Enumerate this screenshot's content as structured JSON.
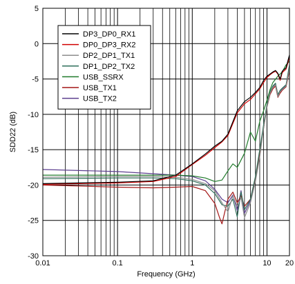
{
  "chart_data": {
    "type": "line",
    "xlabel": "Frequency (GHz)",
    "ylabel": "SDD22 (dB)",
    "xscale": "log",
    "xlim": [
      0.01,
      20
    ],
    "ylim": [
      -30,
      5
    ],
    "x_ticks": [
      {
        "value": 0.01,
        "label": "0.01"
      },
      {
        "value": 0.1,
        "label": "0.1"
      },
      {
        "value": 1,
        "label": "1"
      },
      {
        "value": 10,
        "label": "10"
      },
      {
        "value": 20,
        "label": "20"
      }
    ],
    "y_ticks": [
      {
        "value": 5,
        "label": "5"
      },
      {
        "value": 0,
        "label": "0"
      },
      {
        "value": -5,
        "label": "-5"
      },
      {
        "value": -10,
        "label": "-10"
      },
      {
        "value": -15,
        "label": "-15"
      },
      {
        "value": -20,
        "label": "-20"
      },
      {
        "value": -25,
        "label": "-25"
      },
      {
        "value": -30,
        "label": "-30"
      }
    ],
    "grid": true,
    "legend_position": "top-left",
    "series": [
      {
        "name": "DP3_DP0_RX1",
        "color": "#000000",
        "x": [
          0.01,
          0.1,
          0.3,
          0.6,
          1.0,
          1.5,
          2.0,
          2.5,
          3.0,
          4.0,
          5.0,
          6.0,
          7.0,
          8.0,
          9.0,
          10.0,
          11.0,
          12.0,
          13.0,
          14.0,
          15.0,
          16.0,
          18.0,
          20.0
        ],
        "y": [
          -19.8,
          -19.6,
          -19.4,
          -18.6,
          -17.0,
          -15.6,
          -14.5,
          -13.8,
          -12.8,
          -9.5,
          -8.2,
          -7.6,
          -6.9,
          -6.2,
          -5.2,
          -4.6,
          -4.3,
          -4.0,
          -3.8,
          -4.2,
          -5.0,
          -3.9,
          -3.4,
          -1.6
        ]
      },
      {
        "name": "DP0_DP3_RX2",
        "color": "#d00000",
        "x": [
          0.01,
          0.1,
          0.3,
          0.6,
          1.0,
          1.5,
          2.0,
          2.5,
          3.0,
          4.0,
          5.0,
          6.0,
          7.0,
          8.0,
          9.0,
          10.0,
          11.0,
          12.0,
          13.0,
          14.0,
          15.0,
          16.0,
          18.0,
          20.0
        ],
        "y": [
          -19.9,
          -19.7,
          -19.5,
          -18.8,
          -17.1,
          -15.8,
          -14.7,
          -13.9,
          -13.0,
          -9.8,
          -8.5,
          -7.9,
          -7.1,
          -6.4,
          -5.5,
          -4.8,
          -4.4,
          -4.1,
          -3.9,
          -4.3,
          -5.2,
          -4.1,
          -3.6,
          -1.9
        ]
      },
      {
        "name": "DP2_DP1_TX1",
        "color": "#8c8c8c",
        "x": [
          0.01,
          0.1,
          0.3,
          0.6,
          1.0,
          1.5,
          2.0,
          2.5,
          3.0,
          3.5,
          4.0,
          4.5,
          5.0,
          6.0,
          7.0,
          8.0,
          9.0,
          10.0,
          11.0,
          12.0,
          13.0,
          14.0,
          15.0,
          16.0,
          18.0,
          20.0
        ],
        "y": [
          -18.9,
          -18.8,
          -18.8,
          -18.9,
          -19.2,
          -19.8,
          -20.8,
          -22.5,
          -23.8,
          -21.5,
          -23.0,
          -21.8,
          -24.6,
          -22.5,
          -19.5,
          -16.0,
          -12.0,
          -9.0,
          -7.0,
          -6.2,
          -5.8,
          -7.5,
          -6.8,
          -6.5,
          -6.0,
          -3.5
        ]
      },
      {
        "name": "DP1_DP2_TX2",
        "color": "#2e6f5a",
        "x": [
          0.01,
          0.1,
          0.3,
          0.6,
          1.0,
          1.5,
          2.0,
          2.5,
          3.0,
          3.5,
          4.0,
          4.5,
          5.0,
          6.0,
          7.0,
          8.0,
          9.0,
          10.0,
          11.0,
          12.0,
          13.0,
          14.0,
          15.0,
          16.0,
          18.0,
          20.0
        ],
        "y": [
          -19.1,
          -19.0,
          -19.0,
          -19.1,
          -19.4,
          -20.0,
          -21.2,
          -22.8,
          -23.0,
          -22.0,
          -24.5,
          -21.0,
          -23.5,
          -22.0,
          -18.8,
          -15.0,
          -11.5,
          -8.6,
          -6.8,
          -6.0,
          -5.6,
          -7.2,
          -6.6,
          -6.3,
          -5.8,
          -3.0
        ]
      },
      {
        "name": "USB_SSRX",
        "color": "#1f7a2a",
        "x": [
          0.01,
          0.1,
          0.3,
          0.6,
          1.0,
          1.5,
          2.0,
          2.5,
          3.0,
          3.5,
          4.0,
          5.0,
          6.0,
          7.0,
          8.0,
          9.0,
          10.0,
          11.0,
          12.0,
          14.0,
          16.0,
          18.0,
          20.0
        ],
        "y": [
          -18.6,
          -18.6,
          -18.6,
          -18.6,
          -18.7,
          -19.0,
          -19.5,
          -19.3,
          -18.0,
          -17.0,
          -17.5,
          -15.5,
          -12.5,
          -13.8,
          -11.0,
          -9.5,
          -8.0,
          -6.5,
          -5.5,
          -4.6,
          -4.0,
          -3.0,
          -2.5
        ]
      },
      {
        "name": "USB_TX1",
        "color": "#a31515",
        "x": [
          0.01,
          0.1,
          0.3,
          0.6,
          1.0,
          1.5,
          2.0,
          2.3,
          2.5,
          2.7,
          3.0,
          3.5,
          4.0,
          4.5,
          5.0,
          6.0,
          7.0,
          8.0,
          9.0,
          10.0,
          11.0,
          12.0,
          13.0,
          14.0,
          15.0,
          16.0,
          18.0,
          20.0
        ],
        "y": [
          -20.0,
          -20.3,
          -20.4,
          -20.3,
          -20.2,
          -20.8,
          -22.6,
          -24.5,
          -25.5,
          -24.0,
          -22.0,
          -21.0,
          -22.5,
          -21.5,
          -23.0,
          -22.0,
          -19.0,
          -15.5,
          -12.0,
          -9.0,
          -7.2,
          -6.4,
          -6.0,
          -7.6,
          -7.0,
          -6.6,
          -6.1,
          -3.8
        ]
      },
      {
        "name": "USB_TX2",
        "color": "#5b3d8e",
        "x": [
          0.01,
          0.1,
          0.3,
          0.6,
          1.0,
          1.5,
          2.0,
          2.5,
          3.0,
          3.5,
          4.0,
          4.5,
          5.0,
          6.0,
          7.0,
          8.0,
          9.0,
          10.0,
          11.0,
          12.0,
          13.0,
          14.0,
          15.0,
          16.0,
          18.0,
          20.0
        ],
        "y": [
          -17.8,
          -18.1,
          -18.4,
          -18.6,
          -18.8,
          -19.4,
          -20.6,
          -22.0,
          -22.5,
          -21.4,
          -23.6,
          -20.8,
          -24.0,
          -22.2,
          -19.2,
          -15.6,
          -11.8,
          -8.8,
          -6.9,
          -6.1,
          -5.7,
          -7.4,
          -6.7,
          -6.4,
          -5.9,
          -3.2
        ]
      }
    ]
  }
}
